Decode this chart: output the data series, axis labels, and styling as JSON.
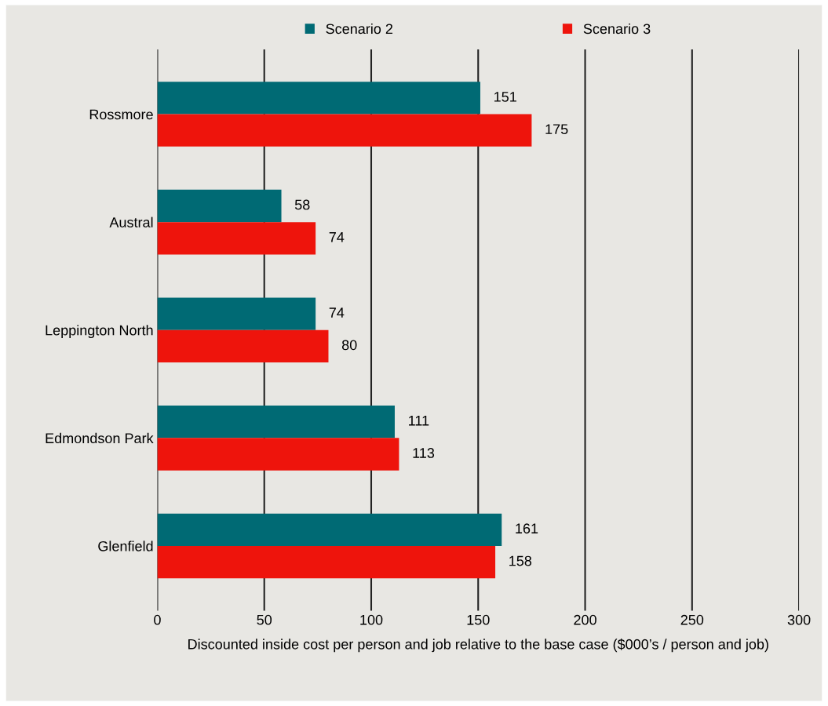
{
  "chart_data": {
    "type": "bar",
    "orientation": "horizontal",
    "categories": [
      "Rossmore",
      "Austral",
      "Leppington North",
      "Edmondson Park",
      "Glenfield"
    ],
    "series": [
      {
        "name": "Scenario 2",
        "color": "#006a74",
        "values": [
          151,
          58,
          74,
          111,
          161
        ]
      },
      {
        "name": "Scenario 3",
        "color": "#ee140c",
        "values": [
          175,
          74,
          80,
          113,
          158
        ]
      }
    ],
    "xlim": [
      0,
      300
    ],
    "xticks": [
      0,
      50,
      100,
      150,
      200,
      250,
      300
    ],
    "xlabel": "Discounted inside cost per person and job relative to the base case ($000’s / person and job)",
    "data_labels": true,
    "grid": "x",
    "legend": "top"
  }
}
